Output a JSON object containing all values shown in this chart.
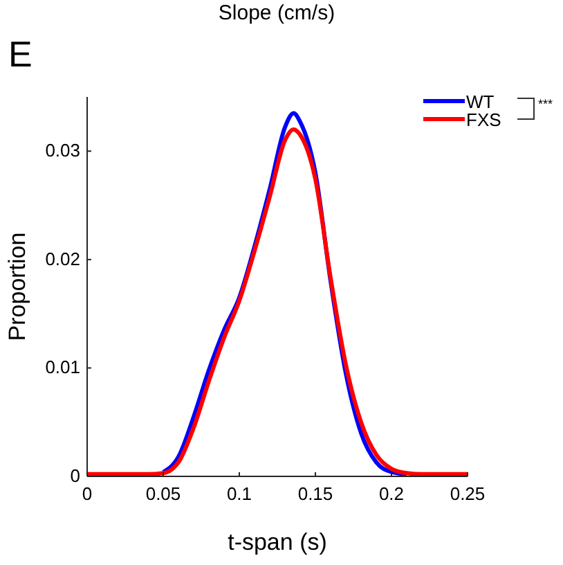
{
  "chart_data": {
    "type": "line",
    "title": "Slope (cm/s)",
    "xlabel": "t-span (s)",
    "ylabel": "Proportion",
    "annotations": [
      "E",
      "***"
    ],
    "x": [
      0,
      0.04,
      0.05,
      0.06,
      0.07,
      0.08,
      0.09,
      0.1,
      0.11,
      0.12,
      0.13,
      0.1357,
      0.14,
      0.15,
      0.16,
      0.17,
      0.18,
      0.19,
      0.2,
      0.21,
      0.22,
      0.25
    ],
    "series": [
      {
        "name": "WT",
        "color": "#0000ff",
        "values": [
          null,
          null,
          0.0004,
          0.0018,
          0.0055,
          0.0098,
          0.0135,
          0.0165,
          0.0212,
          0.0265,
          0.0322,
          0.0335,
          0.0327,
          0.028,
          0.018,
          0.0095,
          0.004,
          0.0013,
          0.0004,
          0.0002,
          null,
          null
        ]
      },
      {
        "name": "FXS",
        "color": "#ff0000",
        "values": [
          0.0002,
          0.0002,
          0.0003,
          0.0013,
          0.0045,
          0.0088,
          0.0128,
          0.0162,
          0.0208,
          0.0258,
          0.031,
          0.032,
          0.0315,
          0.0274,
          0.0183,
          0.0103,
          0.005,
          0.002,
          0.0007,
          0.0003,
          0.0002,
          0.0002
        ]
      }
    ],
    "xlim": [
      0,
      0.25
    ],
    "xticks": [
      0,
      0.05,
      0.1,
      0.15,
      0.2,
      0.25
    ],
    "ylim": [
      0,
      0.035
    ],
    "yticks": [
      0,
      0.01,
      0.02,
      0.03
    ],
    "grid": false,
    "legend": "top right",
    "marker": "none",
    "line_style": "solid"
  }
}
